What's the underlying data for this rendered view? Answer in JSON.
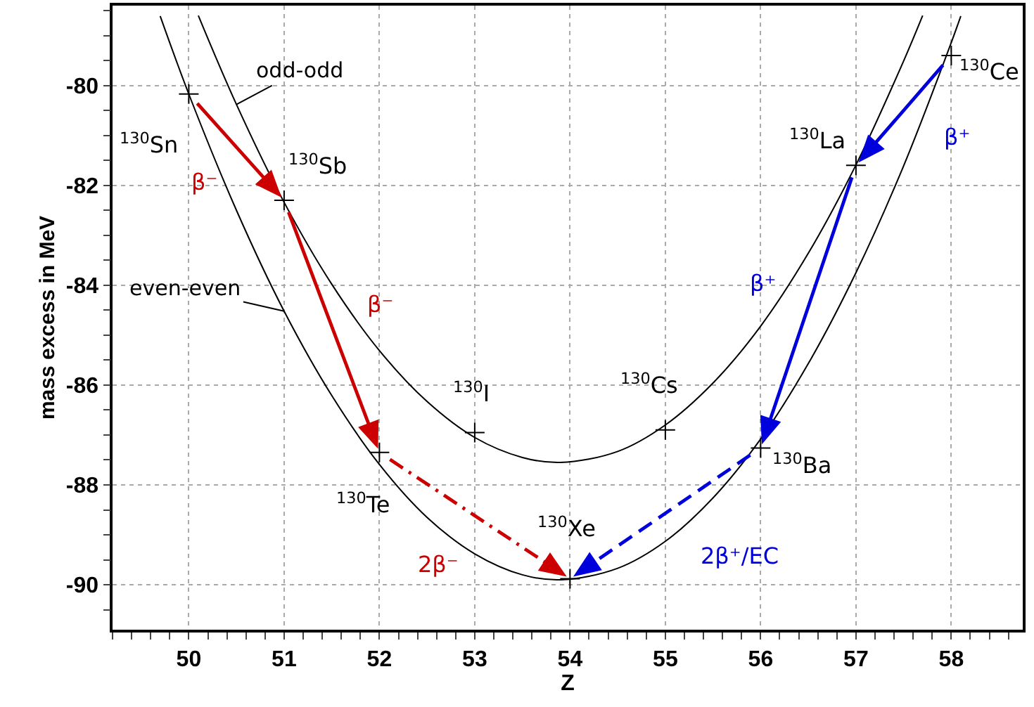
{
  "chart_data": {
    "type": "line",
    "xlabel": "Z",
    "ylabel": "mass excess in MeV",
    "xlim": [
      49.2,
      58.75
    ],
    "ylim": [
      -90.9,
      -78.4
    ],
    "xticks": [
      50,
      51,
      52,
      53,
      54,
      55,
      56,
      57,
      58
    ],
    "yticks": [
      -90,
      -88,
      -86,
      -84,
      -82,
      -80
    ],
    "grid": true,
    "series": [
      {
        "name": "even-even",
        "color": "#000000",
        "line_style": "solid",
        "marker": "none",
        "x": [
          49.7,
          50,
          50.5,
          51,
          51.5,
          52,
          52.5,
          53,
          53.5,
          53.9,
          54.5,
          55,
          55.5,
          56,
          56.5,
          57,
          57.5,
          58,
          58.1
        ],
        "values": [
          -78.61,
          -80.17,
          -82.5,
          -84.52,
          -86.21,
          -87.59,
          -88.65,
          -89.38,
          -89.8,
          -89.9,
          -89.67,
          -89.13,
          -88.26,
          -87.08,
          -85.57,
          -83.75,
          -81.61,
          -79.14,
          -78.61
        ]
      },
      {
        "name": "odd-odd",
        "color": "#000000",
        "line_style": "solid",
        "marker": "none",
        "x": [
          50.1,
          50.5,
          51,
          51.5,
          52,
          52.5,
          53,
          53.5,
          53.9,
          54.5,
          55,
          55.5,
          56,
          56.5,
          57,
          57.5,
          57.7
        ],
        "values": [
          -78.6,
          -80.38,
          -82.34,
          -83.98,
          -85.31,
          -86.33,
          -87.05,
          -87.45,
          -87.55,
          -87.33,
          -86.8,
          -85.96,
          -84.82,
          -83.36,
          -81.59,
          -79.51,
          -78.6
        ]
      },
      {
        "type": "scatter",
        "color": "#000000",
        "marker": "cross",
        "x": [
          50,
          51,
          52,
          53,
          54,
          55,
          56,
          57,
          58
        ],
        "values": [
          -80.17,
          -82.3,
          -87.35,
          -86.95,
          -89.88,
          -86.9,
          -87.26,
          -81.6,
          -79.4
        ]
      }
    ],
    "annotations": [
      "$^{130}$Sn",
      "$^{130}$Sb",
      "$^{130}$Te",
      "$^{130}$I",
      "$^{130}$Xe",
      "$^{130}$Cs",
      "$^{130}$Ba",
      "$^{130}$La",
      "$^{130}$Ce",
      "β⁻",
      "β⁻",
      "2β⁻",
      "β⁺",
      "β⁺",
      "2β⁺/EC"
    ]
  }
}
